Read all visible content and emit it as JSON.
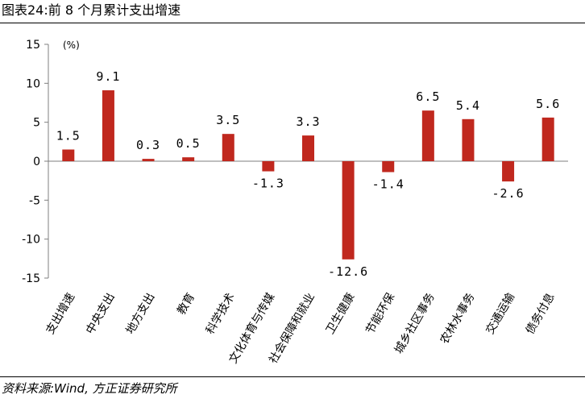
{
  "header": {
    "title": "图表24:前 8 个月累计支出增速"
  },
  "footer": {
    "source": "资料来源:Wind, 方正证券研究所"
  },
  "colors": {
    "bar": "#C0281E",
    "axis": "#7F7F7F"
  },
  "chart_data": {
    "type": "bar",
    "categories": [
      "支出增速",
      "中央支出",
      "地方支出",
      "教育",
      "科学技术",
      "文化体育与传媒",
      "社会保障和就业",
      "卫生健康",
      "节能环保",
      "城乡社区事务",
      "农林水事务",
      "交通运输",
      "债务付息"
    ],
    "values": [
      1.5,
      9.1,
      0.3,
      0.5,
      3.5,
      -1.3,
      3.3,
      -12.6,
      -1.4,
      6.5,
      5.4,
      -2.6,
      5.6
    ],
    "value_labels": [
      "1.5",
      "9.1",
      "0.3",
      "0.5",
      "3.5",
      "-1.3",
      "3.3",
      "-12.6",
      "-1.4",
      "6.5",
      "5.4",
      "-2.6",
      "5.6"
    ],
    "unit": "(%)",
    "y_ticks": [
      15,
      10,
      5,
      0,
      -5,
      -10,
      -15
    ],
    "ylim": [
      -15,
      15
    ],
    "grid": false,
    "legend": "none"
  }
}
